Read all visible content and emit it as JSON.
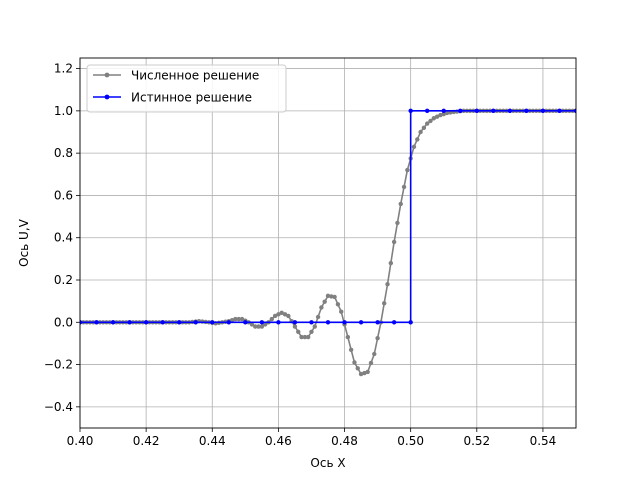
{
  "chart_data": {
    "type": "line",
    "title": "",
    "xlabel": "Ось X",
    "ylabel": "Ось U,V",
    "xlim": [
      0.4,
      0.55
    ],
    "ylim": [
      -0.5,
      1.25
    ],
    "xticks": [
      "0.40",
      "0.42",
      "0.44",
      "0.46",
      "0.48",
      "0.50",
      "0.52",
      "0.54"
    ],
    "yticks": [
      "−0.4",
      "−0.2",
      "0.0",
      "0.2",
      "0.4",
      "0.6",
      "0.8",
      "1.0",
      "1.2"
    ],
    "xtick_values": [
      0.4,
      0.42,
      0.44,
      0.46,
      0.48,
      0.5,
      0.52,
      0.54
    ],
    "ytick_values": [
      -0.4,
      -0.2,
      0.0,
      0.2,
      0.4,
      0.6,
      0.8,
      1.0,
      1.2
    ],
    "grid": true,
    "legend_position": "top-left",
    "series": [
      {
        "name": "Численное решение",
        "color": "#808080",
        "marker": "circle",
        "x": [
          0.4,
          0.41,
          0.42,
          0.425,
          0.43,
          0.433,
          0.436,
          0.439,
          0.441,
          0.443,
          0.445,
          0.447,
          0.449,
          0.451,
          0.453,
          0.455,
          0.457,
          0.459,
          0.461,
          0.463,
          0.465,
          0.467,
          0.469,
          0.471,
          0.473,
          0.475,
          0.477,
          0.479,
          0.481,
          0.483,
          0.485,
          0.487,
          0.489,
          0.491,
          0.493,
          0.495,
          0.497,
          0.499,
          0.501,
          0.503,
          0.505,
          0.507,
          0.509,
          0.511,
          0.513,
          0.516,
          0.52,
          0.525,
          0.53,
          0.54,
          0.55
        ],
        "y": [
          0.0,
          0.0,
          0.0,
          0.0,
          0.0,
          0.0,
          0.005,
          0.0,
          -0.005,
          0.0,
          0.005,
          0.015,
          0.015,
          0.0,
          -0.02,
          -0.02,
          0.0,
          0.03,
          0.045,
          0.03,
          -0.02,
          -0.07,
          -0.07,
          -0.02,
          0.07,
          0.125,
          0.12,
          0.05,
          -0.07,
          -0.19,
          -0.245,
          -0.235,
          -0.15,
          0.0,
          0.18,
          0.38,
          0.56,
          0.72,
          0.83,
          0.9,
          0.94,
          0.965,
          0.98,
          0.99,
          0.995,
          1.0,
          1.0,
          1.0,
          1.0,
          1.0,
          1.0
        ]
      },
      {
        "name": "Истинное решение",
        "color": "#0000ff",
        "marker": "circle",
        "x": [
          0.4,
          0.405,
          0.41,
          0.415,
          0.42,
          0.425,
          0.43,
          0.435,
          0.44,
          0.445,
          0.45,
          0.455,
          0.46,
          0.465,
          0.47,
          0.475,
          0.48,
          0.485,
          0.49,
          0.495,
          0.5,
          0.5,
          0.505,
          0.51,
          0.515,
          0.52,
          0.525,
          0.53,
          0.535,
          0.54,
          0.545,
          0.55
        ],
        "y": [
          0,
          0,
          0,
          0,
          0,
          0,
          0,
          0,
          0,
          0,
          0,
          0,
          0,
          0,
          0,
          0,
          0,
          0,
          0,
          0,
          0,
          1,
          1,
          1,
          1,
          1,
          1,
          1,
          1,
          1,
          1,
          1
        ]
      }
    ]
  }
}
